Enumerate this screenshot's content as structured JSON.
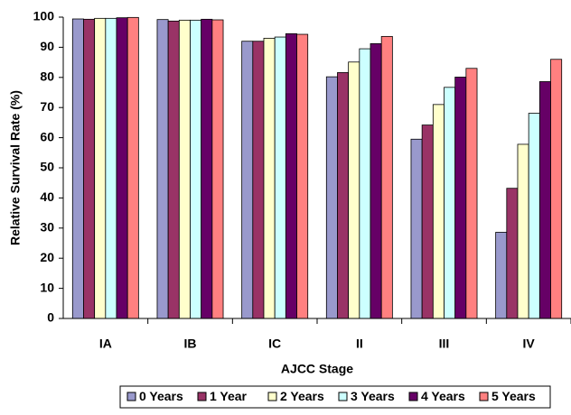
{
  "chart_data": {
    "type": "bar",
    "y_label": "Relative Survival Rate (%)",
    "x_label": "AJCC Stage",
    "categories": [
      "IA",
      "IB",
      "IC",
      "II",
      "III",
      "IV"
    ],
    "series": [
      {
        "name": "0 Years",
        "color": "#9999cc",
        "values": [
          99.4,
          99.2,
          92.0,
          80.2,
          59.5,
          28.6
        ]
      },
      {
        "name": "1 Year",
        "color": "#993366",
        "values": [
          99.3,
          98.7,
          92.0,
          81.6,
          64.2,
          43.2
        ]
      },
      {
        "name": "2 Years",
        "color": "#ffffcc",
        "values": [
          99.6,
          99.0,
          93.0,
          85.1,
          71.0,
          57.8
        ]
      },
      {
        "name": "3 Years",
        "color": "#ccffff",
        "values": [
          99.6,
          99.0,
          93.4,
          89.5,
          76.7,
          68.1
        ]
      },
      {
        "name": "4 Years",
        "color": "#660066",
        "values": [
          99.8,
          99.3,
          94.5,
          91.2,
          80.1,
          78.6
        ]
      },
      {
        "name": "5 Years",
        "color": "#ff8080",
        "values": [
          99.9,
          99.1,
          94.3,
          93.6,
          83.0,
          86.0
        ]
      }
    ],
    "ylim": [
      0,
      100
    ],
    "yticks": [
      0,
      10,
      20,
      30,
      40,
      50,
      60,
      70,
      80,
      90,
      100
    ],
    "grid": false,
    "legend": "bottom"
  }
}
